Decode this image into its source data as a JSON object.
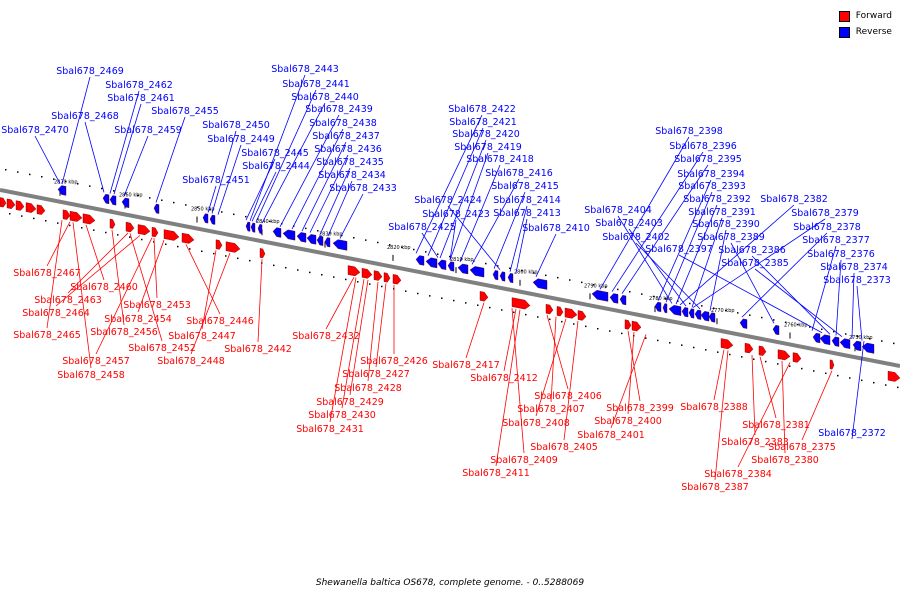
{
  "caption": "Shewanella baltica OS678, complete genome. - 0..5288069",
  "legend": [
    {
      "label": "Forward",
      "color": "#ff0000"
    },
    {
      "label": "Reverse",
      "color": "#0000ff"
    }
  ],
  "colors": {
    "forward": "#ff0000",
    "reverse": "#0000ff",
    "backbone": "#808080"
  },
  "ticks": [
    "2870 kbp",
    "2860 kbp",
    "2850 kbp",
    "2840 kbp",
    "2830 kbp",
    "2820 kbp",
    "2810 kbp",
    "2800 kbp",
    "2790 kbp",
    "2780 kbp",
    "2770 kbp",
    "2760 kbp",
    "2750 kbp"
  ],
  "reverse_genes": [
    "Sbal678_2469",
    "Sbal678_2462",
    "Sbal678_2461",
    "Sbal678_2468",
    "Sbal678_2455",
    "Sbal678_2470",
    "Sbal678_2459",
    "Sbal678_2443",
    "Sbal678_2441",
    "Sbal678_2440",
    "Sbal678_2439",
    "Sbal678_2450",
    "Sbal678_2438",
    "Sbal678_2449",
    "Sbal678_2437",
    "Sbal678_2445",
    "Sbal678_2436",
    "Sbal678_2444",
    "Sbal678_2435",
    "Sbal678_2451",
    "Sbal678_2434",
    "Sbal678_2433",
    "Sbal678_2422",
    "Sbal678_2421",
    "Sbal678_2420",
    "Sbal678_2419",
    "Sbal678_2418",
    "Sbal678_2416",
    "Sbal678_2415",
    "Sbal678_2424",
    "Sbal678_2414",
    "Sbal678_2423",
    "Sbal678_2413",
    "Sbal678_2425",
    "Sbal678_2410",
    "Sbal678_2398",
    "Sbal678_2396",
    "Sbal678_2395",
    "Sbal678_2394",
    "Sbal678_2393",
    "Sbal678_2404",
    "Sbal678_2392",
    "Sbal678_2382",
    "Sbal678_2403",
    "Sbal678_2391",
    "Sbal678_2379",
    "Sbal678_2402",
    "Sbal678_2390",
    "Sbal678_2378",
    "Sbal678_2389",
    "Sbal678_2377",
    "Sbal678_2397",
    "Sbal678_2386",
    "Sbal678_2376",
    "Sbal678_2385",
    "Sbal678_2374",
    "Sbal678_2373",
    "Sbal678_2372"
  ],
  "forward_genes": [
    "Sbal678_2467",
    "Sbal678_2460",
    "Sbal678_2463",
    "Sbal678_2464",
    "Sbal678_2453",
    "Sbal678_2454",
    "Sbal678_2446",
    "Sbal678_2465",
    "Sbal678_2456",
    "Sbal678_2447",
    "Sbal678_2452",
    "Sbal678_2442",
    "Sbal678_2457",
    "Sbal678_2448",
    "Sbal678_2458",
    "Sbal678_2432",
    "Sbal678_2426",
    "Sbal678_2427",
    "Sbal678_2428",
    "Sbal678_2429",
    "Sbal678_2430",
    "Sbal678_2431",
    "Sbal678_2417",
    "Sbal678_2412",
    "Sbal678_2406",
    "Sbal678_2407",
    "Sbal678_2408",
    "Sbal678_2405",
    "Sbal678_2409",
    "Sbal678_2411",
    "Sbal678_2399",
    "Sbal678_2400",
    "Sbal678_2401",
    "Sbal678_2388",
    "Sbal678_2381",
    "Sbal678_2383",
    "Sbal678_2375",
    "Sbal678_2380",
    "Sbal678_2384",
    "Sbal678_2387"
  ]
}
